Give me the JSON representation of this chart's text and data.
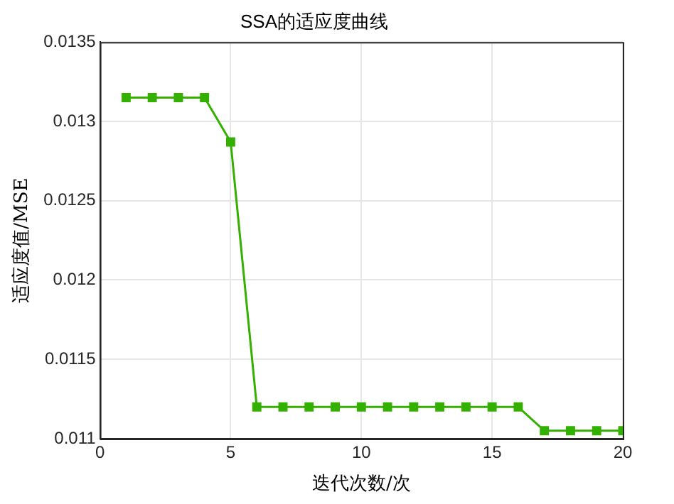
{
  "chart_data": {
    "type": "line",
    "title": "SSA的适应度曲线",
    "xlabel": "迭代次数/次",
    "ylabel": "适应度值/MSE",
    "x": [
      1,
      2,
      3,
      4,
      5,
      6,
      7,
      8,
      9,
      10,
      11,
      12,
      13,
      14,
      15,
      16,
      17,
      18,
      19,
      20
    ],
    "series": [
      {
        "color": "#33b000",
        "values": [
          0.01315,
          0.01315,
          0.01315,
          0.01315,
          0.01287,
          0.0112,
          0.0112,
          0.0112,
          0.0112,
          0.0112,
          0.0112,
          0.0112,
          0.0112,
          0.0112,
          0.0112,
          0.0112,
          0.01105,
          0.01105,
          0.01105,
          0.01105
        ]
      }
    ],
    "xlim": [
      0,
      20
    ],
    "xticks": [
      0,
      5,
      10,
      15,
      20
    ],
    "ylim": [
      0.011,
      0.0135
    ],
    "yticks": [
      0.011,
      0.0115,
      0.012,
      0.0125,
      0.013,
      0.0135
    ],
    "grid": true,
    "marker": "square",
    "line_style": "solid",
    "legend": false
  }
}
